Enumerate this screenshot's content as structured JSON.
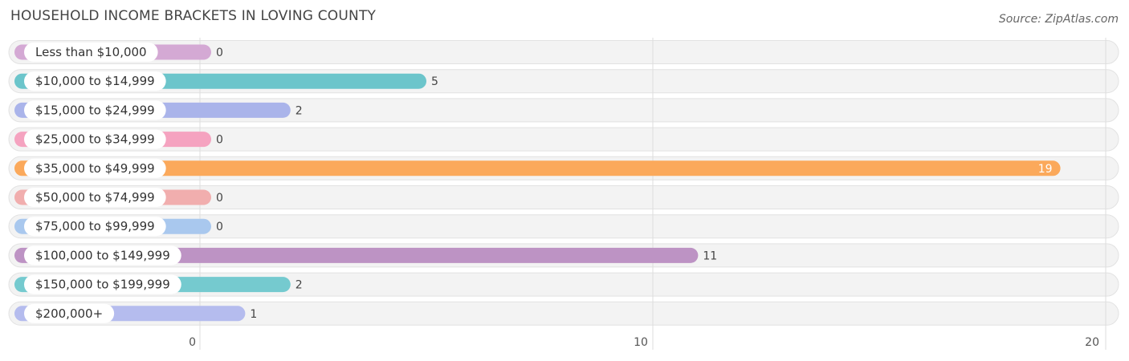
{
  "title": "HOUSEHOLD INCOME BRACKETS IN LOVING COUNTY",
  "source": "Source: ZipAtlas.com",
  "chart_data": {
    "type": "bar",
    "orientation": "horizontal",
    "title": "HOUSEHOLD INCOME BRACKETS IN LOVING COUNTY",
    "xlabel": "",
    "ylabel": "",
    "xlim": [
      0,
      20
    ],
    "ticks": [
      0,
      10,
      20
    ],
    "tick_labels": [
      "0",
      "10",
      "20"
    ],
    "categories": [
      "Less than $10,000",
      "$10,000 to $14,999",
      "$15,000 to $24,999",
      "$25,000 to $34,999",
      "$35,000 to $49,999",
      "$50,000 to $74,999",
      "$75,000 to $99,999",
      "$100,000 to $149,999",
      "$150,000 to $199,999",
      "$200,000+"
    ],
    "values": [
      0,
      5,
      2,
      0,
      19,
      0,
      0,
      11,
      2,
      1
    ],
    "colors": [
      "#d4a9d4",
      "#6cc5cb",
      "#aab4ea",
      "#f5a3c0",
      "#fba95b",
      "#f1aeae",
      "#a9c8ee",
      "#bd93c4",
      "#75cacf",
      "#b5bcee"
    ],
    "grid": true,
    "legend": "none"
  }
}
